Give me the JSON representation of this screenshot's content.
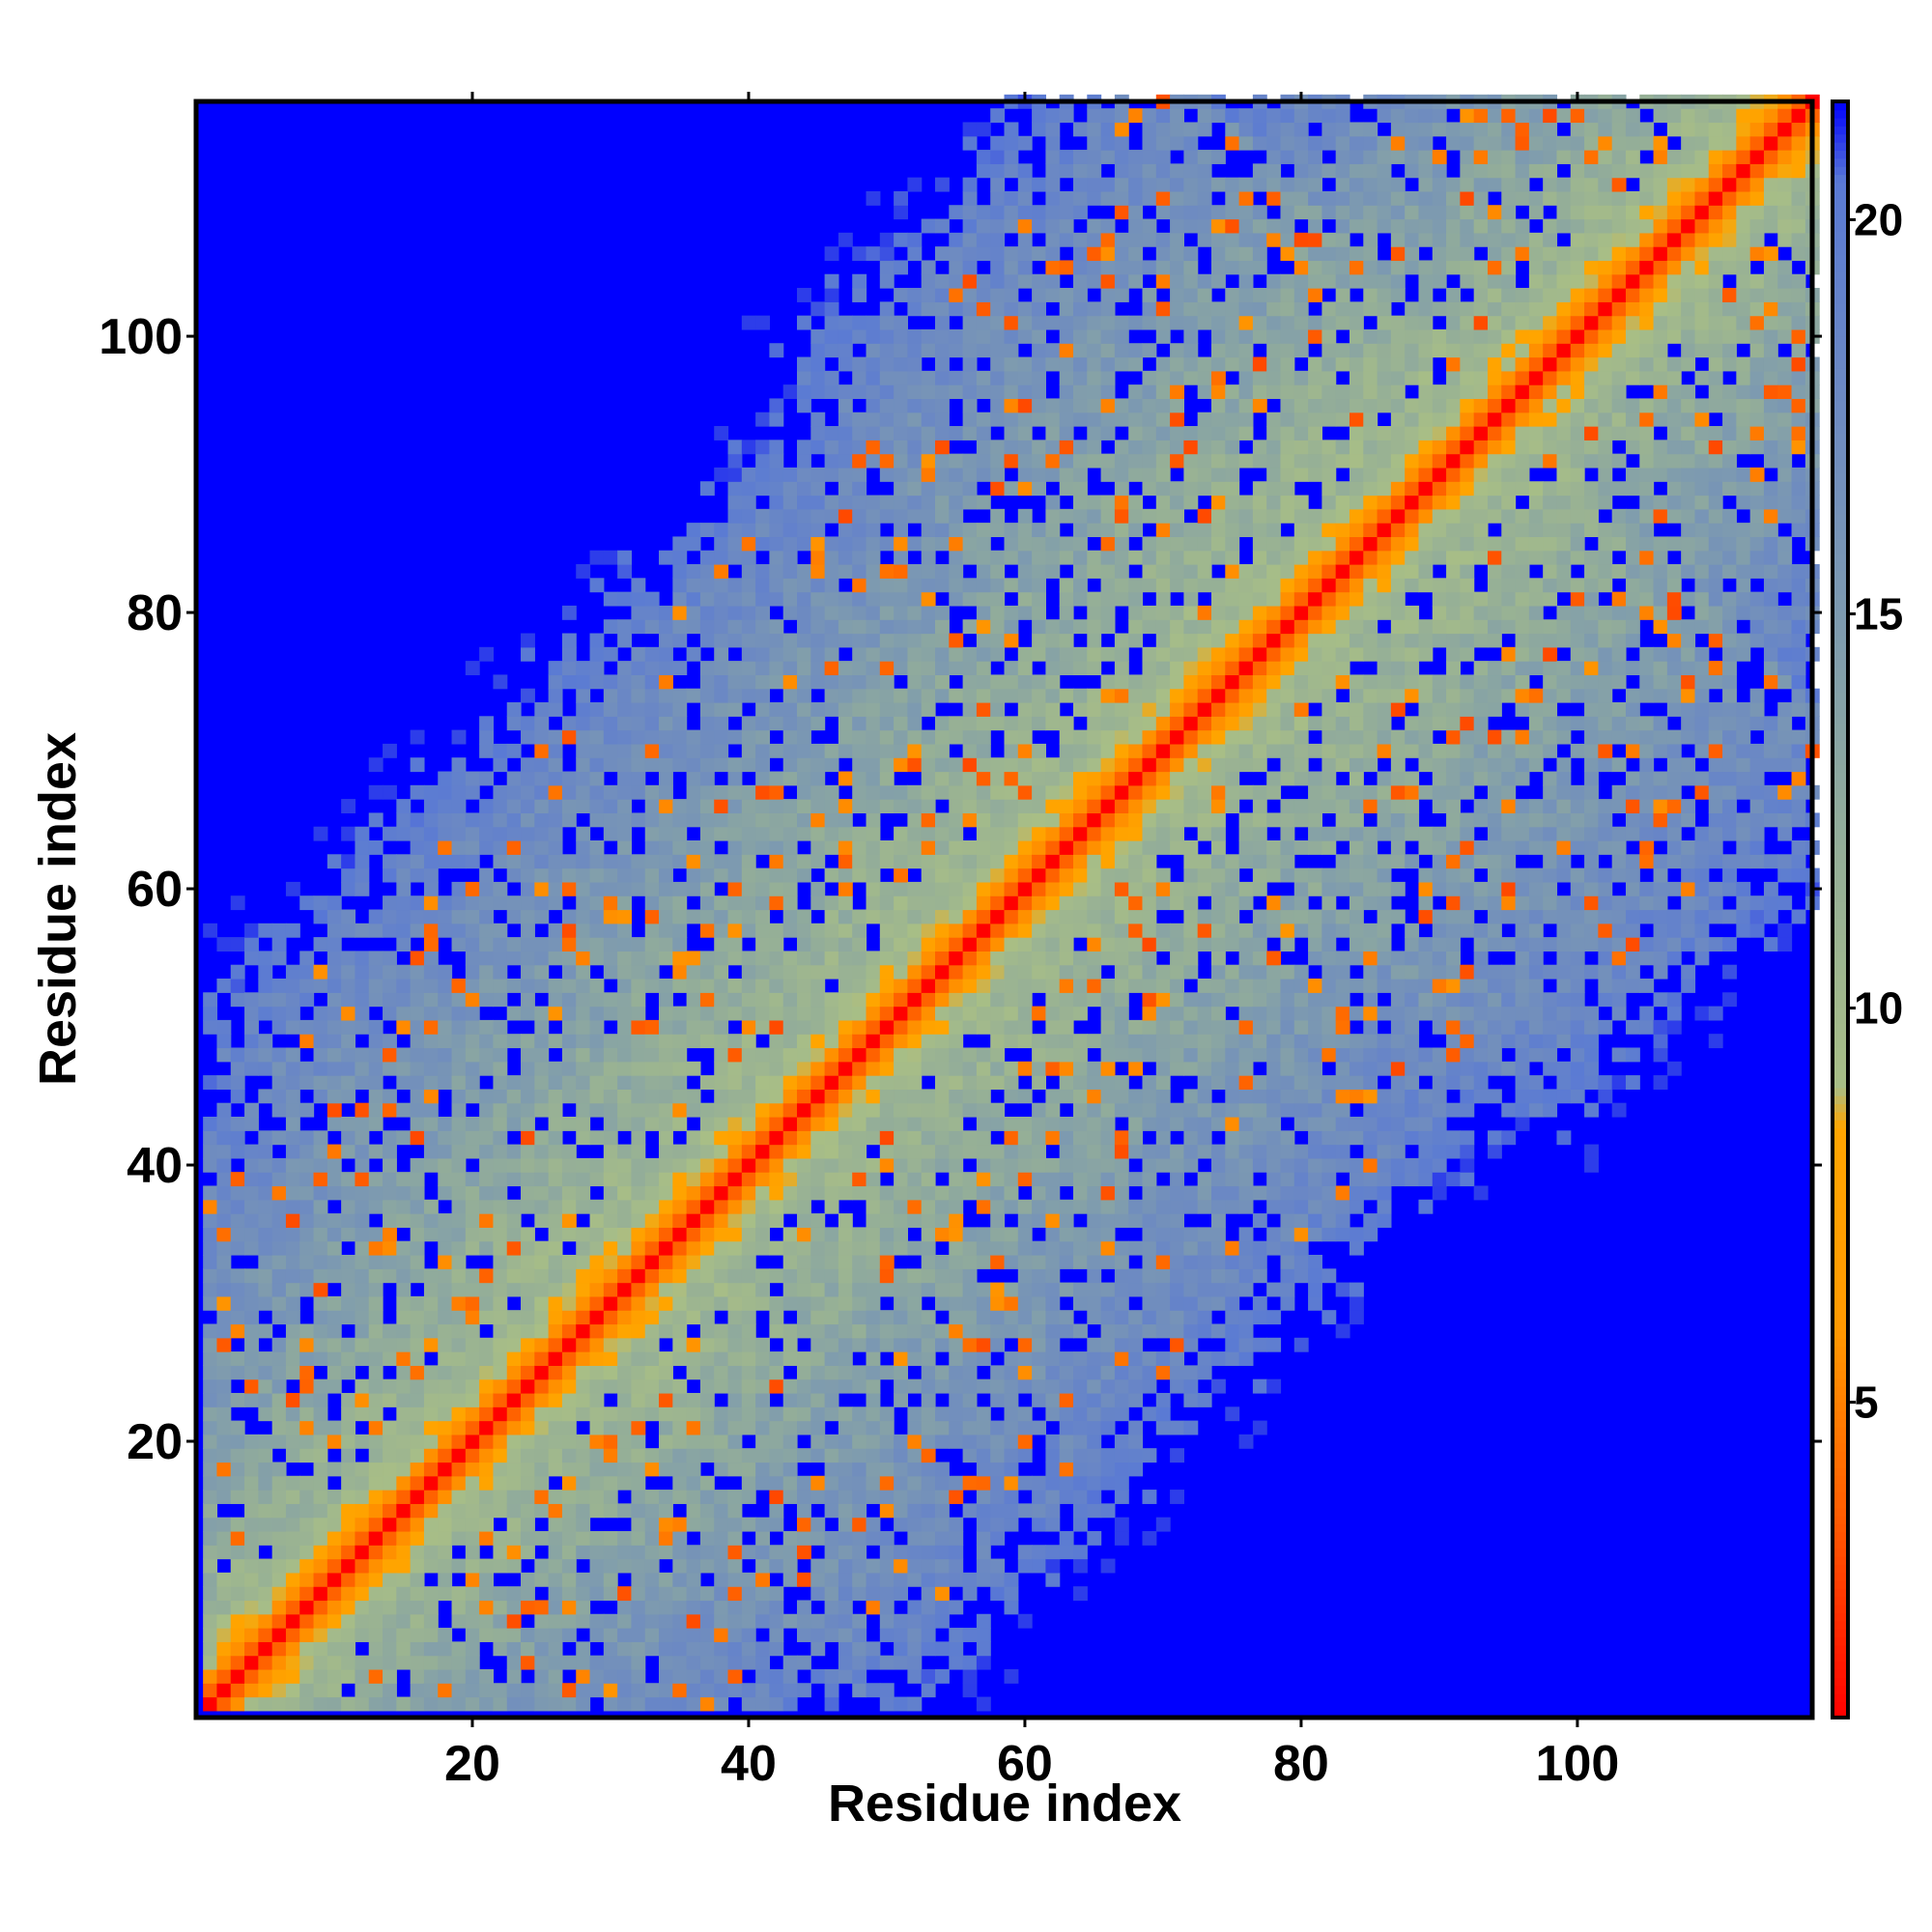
{
  "chart_data": {
    "type": "heatmap",
    "title": "",
    "xlabel": "Residue index",
    "ylabel": "Residue index",
    "n_residues": 117,
    "xlim": [
      1,
      117
    ],
    "ylim": [
      1,
      117
    ],
    "x_ticks": [
      20,
      40,
      60,
      80,
      100
    ],
    "y_ticks": [
      20,
      40,
      60,
      80,
      100
    ],
    "colorbar": {
      "range": [
        1,
        21.5
      ],
      "ticks": [
        5,
        10,
        15,
        20
      ],
      "stops": [
        {
          "value": 1,
          "color": "#ff0000"
        },
        {
          "value": 3.5,
          "color": "#ff5a00"
        },
        {
          "value": 6,
          "color": "#ff9a00"
        },
        {
          "value": 8.5,
          "color": "#ffa500"
        },
        {
          "value": 9,
          "color": "#a8be86"
        },
        {
          "value": 12,
          "color": "#94ae98"
        },
        {
          "value": 15,
          "color": "#7d9ab0"
        },
        {
          "value": 18,
          "color": "#6b88c4"
        },
        {
          "value": 20.5,
          "color": "#5a7ad4"
        },
        {
          "value": 21.5,
          "color": "#0000ff"
        }
      ]
    },
    "pattern": "symmetric residue distance map: red on main diagonal, orange flanking band, green-grey band up to ~10 residues from diagonal, blue-grey speckled contact region, saturated blue outside range"
  },
  "colors": {
    "saturated": "#0000ff",
    "diagonal": "#ff0000",
    "near": "#ff8c00",
    "mid": "#a8be86",
    "far": "#6f8dc0"
  }
}
